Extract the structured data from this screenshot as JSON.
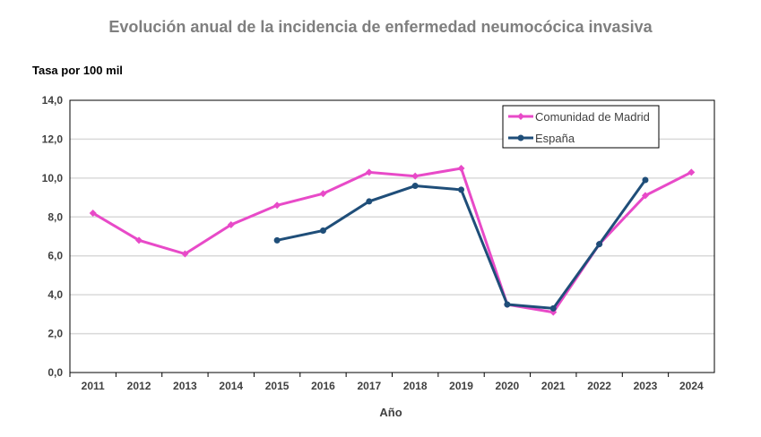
{
  "chart_data": {
    "type": "line",
    "title": "Evolución anual de la incidencia de enfermedad neumocócica invasiva",
    "ylabel": "Tasa por 100 mil",
    "xlabel": "Año",
    "categories": [
      "2011",
      "2012",
      "2013",
      "2014",
      "2015",
      "2016",
      "2017",
      "2018",
      "2019",
      "2020",
      "2021",
      "2022",
      "2023",
      "2024"
    ],
    "ylim": [
      0,
      14
    ],
    "yticks": [
      "0,0",
      "2,0",
      "4,0",
      "6,0",
      "8,0",
      "10,0",
      "12,0",
      "14,0"
    ],
    "grid": true,
    "legend_position": "top-right",
    "series": [
      {
        "name": "Comunidad de Madrid",
        "color": "#e84ac8",
        "marker": "diamond",
        "values": [
          8.2,
          6.8,
          6.1,
          7.6,
          8.6,
          9.2,
          10.3,
          10.1,
          10.5,
          3.5,
          3.1,
          6.6,
          9.1,
          10.3
        ]
      },
      {
        "name": "España",
        "color": "#1f4e79",
        "marker": "circle",
        "values": [
          null,
          null,
          null,
          null,
          6.8,
          7.3,
          8.8,
          9.6,
          9.4,
          3.5,
          3.3,
          6.6,
          9.9,
          null
        ]
      }
    ]
  }
}
